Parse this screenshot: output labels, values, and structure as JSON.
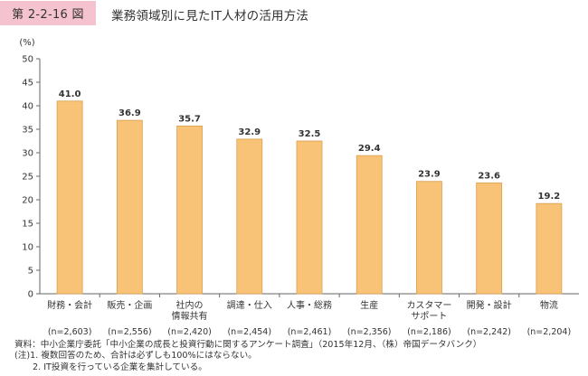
{
  "figure": {
    "number": "第 2-2-16 図",
    "title": "業務領域別に見たIT人材の活用方法"
  },
  "chart_data": {
    "type": "bar",
    "ylabel": "(%)",
    "ylim": [
      0,
      50
    ],
    "yticks": [
      0,
      5,
      10,
      15,
      20,
      25,
      30,
      35,
      40,
      45,
      50
    ],
    "grid": false,
    "bar_color": "#f8c277",
    "categories": [
      {
        "label": "財務・会計",
        "n": "(n=2,603)"
      },
      {
        "label": "販売・企画",
        "n": "(n=2,556)"
      },
      {
        "label": "社内の\n情報共有",
        "n": "(n=2,420)"
      },
      {
        "label": "調達・仕入",
        "n": "(n=2,454)"
      },
      {
        "label": "人事・総務",
        "n": "(n=2,461)"
      },
      {
        "label": "生産",
        "n": "(n=2,356)"
      },
      {
        "label": "カスタマー\nサポート",
        "n": "(n=2,186)"
      },
      {
        "label": "開発・設計",
        "n": "(n=2,242)"
      },
      {
        "label": "物流",
        "n": "(n=2,204)"
      }
    ],
    "values": [
      41.0,
      36.9,
      35.7,
      32.9,
      32.5,
      29.4,
      23.9,
      23.6,
      19.2
    ],
    "value_labels": [
      "41.0",
      "36.9",
      "35.7",
      "32.9",
      "32.5",
      "29.4",
      "23.9",
      "23.6",
      "19.2"
    ]
  },
  "footnotes": {
    "source": "資料：中小企業庁委託「中小企業の成長と投資行動に関するアンケート調査」（2015年12月、（株）帝国データバンク）",
    "note1": "(注)1. 複数回答のため、合計は必ずしも100%にはならない。",
    "note2": "2. IT投資を行っている企業を集計している。"
  }
}
